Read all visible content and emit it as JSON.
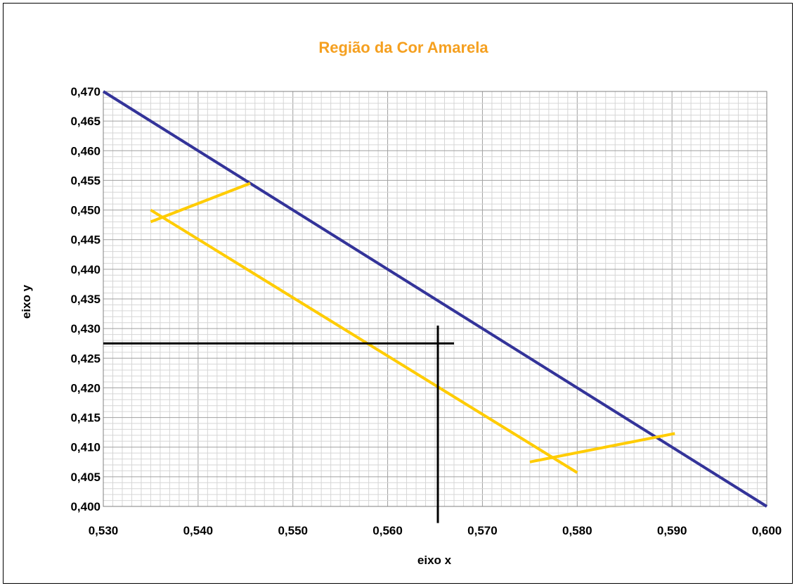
{
  "chart_data": {
    "type": "line",
    "title": "Região da Cor Amarela",
    "xlabel": "eixo x",
    "ylabel": "eixo y",
    "xlim": [
      0.53,
      0.6
    ],
    "ylim": [
      0.4,
      0.47
    ],
    "x_major_step": 0.01,
    "y_major_step": 0.005,
    "x_minor_step": 0.001,
    "y_minor_step": 0.001,
    "x_tick_labels": [
      "0,530",
      "0,540",
      "0,550",
      "0,560",
      "0,570",
      "0,580",
      "0,590",
      "0,600"
    ],
    "y_tick_labels": [
      "0,400",
      "0,405",
      "0,410",
      "0,415",
      "0,420",
      "0,425",
      "0,430",
      "0,435",
      "0,440",
      "0,445",
      "0,450",
      "0,455",
      "0,460",
      "0,465",
      "0,470"
    ],
    "grid": true,
    "legend": "none",
    "title_color": "#f5a020",
    "series": [
      {
        "color": "#333399",
        "width": 4,
        "points": [
          [
            0.53,
            0.47
          ],
          [
            0.6,
            0.4
          ]
        ]
      },
      {
        "color": "#ffcc00",
        "width": 4,
        "points": [
          [
            0.535,
            0.45
          ],
          [
            0.58,
            0.4057
          ]
        ]
      },
      {
        "color": "#ffcc00",
        "width": 4,
        "points": [
          [
            0.535,
            0.448
          ],
          [
            0.5455,
            0.4545
          ]
        ]
      },
      {
        "color": "#ffcc00",
        "width": 4,
        "points": [
          [
            0.575,
            0.4075
          ],
          [
            0.5903,
            0.4123
          ]
        ]
      },
      {
        "color": "#000000",
        "width": 3,
        "points": [
          [
            0.53,
            0.4275
          ],
          [
            0.567,
            0.4275
          ]
        ]
      },
      {
        "color": "#000000",
        "width": 3,
        "points": [
          [
            0.5653,
            0.4305
          ],
          [
            0.5653,
            0.3972
          ]
        ]
      }
    ]
  }
}
